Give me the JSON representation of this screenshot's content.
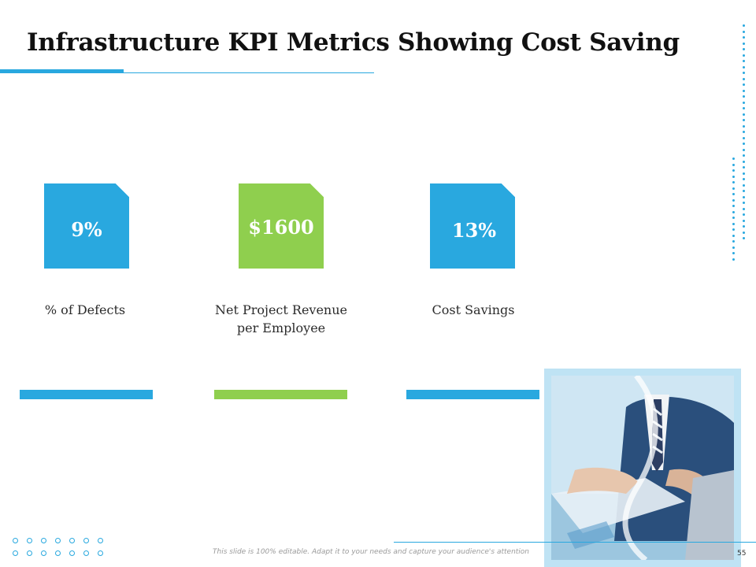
{
  "slide": {
    "title": "Infrastructure KPI Metrics Showing Cost Saving",
    "footer_note": "This slide is 100% editable. Adapt it to your needs and capture your audience's attention",
    "page_number": "55"
  },
  "kpis": [
    {
      "value": "9%",
      "label": "% of Defects",
      "color": "#29a8df"
    },
    {
      "value": "$1600",
      "label": "Net Project Revenue per Employee",
      "color": "#8fcf4e"
    },
    {
      "value": "13%",
      "label": "Cost Savings",
      "color": "#29a8df"
    }
  ],
  "colors": {
    "accent_blue": "#29a8df",
    "accent_green": "#8fcf4e",
    "photo_frame": "#bfe3f4"
  },
  "image": {
    "subject": "business people reviewing charts on a tablet"
  }
}
